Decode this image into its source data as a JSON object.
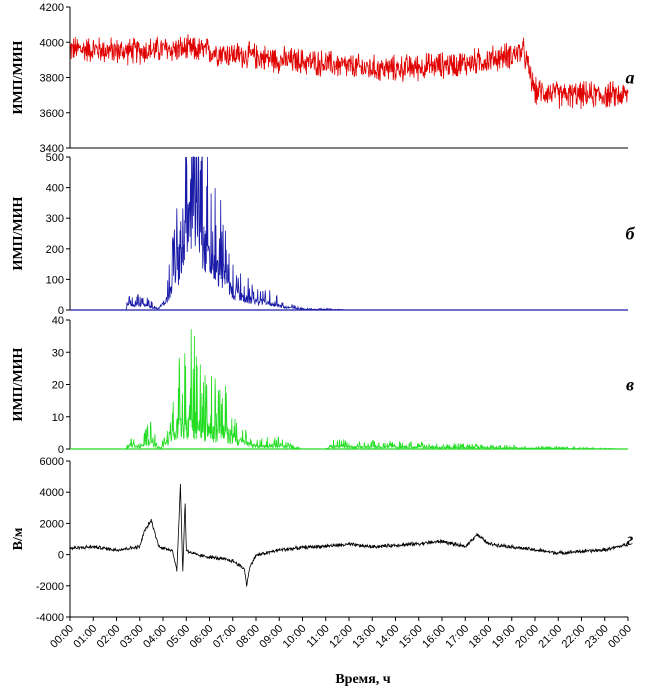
{
  "chart_data": [
    {
      "type": "line",
      "panel_label": "а",
      "ylabel": "ИМП/МИН",
      "ylim": [
        3400,
        4200
      ],
      "yticks": [
        3400,
        3600,
        3800,
        4000,
        4200
      ],
      "color": "#e00000",
      "series": [
        {
          "x": [
            0,
            1,
            2,
            3,
            4,
            5,
            6,
            7,
            8,
            9,
            10,
            11,
            12,
            13,
            14,
            15,
            16,
            17,
            18,
            19,
            19.5,
            20,
            20.5,
            21,
            22,
            23,
            24
          ],
          "values": [
            3960,
            3960,
            3950,
            3950,
            3960,
            3960,
            3950,
            3930,
            3920,
            3900,
            3890,
            3880,
            3860,
            3850,
            3850,
            3860,
            3870,
            3880,
            3900,
            3930,
            3950,
            3720,
            3720,
            3700,
            3700,
            3700,
            3700
          ]
        }
      ],
      "noise": 90
    },
    {
      "type": "line",
      "panel_label": "б",
      "ylabel": "ИМП/МИН",
      "ylim": [
        0,
        500
      ],
      "yticks": [
        0,
        100,
        200,
        300,
        400,
        500
      ],
      "color": "#1a1aa8",
      "series": [
        {
          "x": [
            0,
            2.4,
            2.5,
            3,
            3.8,
            4.2,
            4.5,
            4.8,
            5.0,
            5.2,
            5.5,
            5.8,
            6.0,
            6.3,
            6.6,
            7.0,
            7.5,
            8.0,
            8.5,
            9.0,
            9.3,
            10,
            11,
            12,
            24
          ],
          "values": [
            0,
            0,
            20,
            20,
            5,
            40,
            100,
            170,
            280,
            350,
            300,
            220,
            170,
            140,
            120,
            60,
            40,
            30,
            25,
            15,
            10,
            2,
            2,
            0,
            0
          ]
        }
      ],
      "noise": 0.45
    },
    {
      "type": "line",
      "panel_label": "в",
      "ylabel": "ИМП/МИН",
      "ylim": [
        0,
        40
      ],
      "yticks": [
        0,
        10,
        20,
        30,
        40
      ],
      "color": "#22dd22",
      "series": [
        {
          "x": [
            0,
            2.4,
            2.6,
            3.0,
            3.4,
            3.8,
            4.0,
            4.3,
            4.6,
            4.9,
            5.2,
            5.5,
            5.8,
            6.1,
            6.5,
            7.0,
            7.5,
            8.0,
            8.5,
            9.0,
            9.4,
            10,
            11,
            11.2,
            24
          ],
          "values": [
            0,
            0,
            1.5,
            0.5,
            2.5,
            0.5,
            1,
            4,
            7,
            9,
            10,
            9,
            7,
            6,
            6,
            4,
            2,
            1,
            1,
            1,
            0.5,
            0,
            0,
            0.8,
            0
          ]
        }
      ],
      "noise": 0.7
    },
    {
      "type": "line",
      "panel_label": "г",
      "ylabel": "В/м",
      "ylim": [
        -4000,
        6000
      ],
      "yticks": [
        -4000,
        -2000,
        0,
        2000,
        4000,
        6000
      ],
      "color": "#000000",
      "series": [
        {
          "x": [
            0,
            1,
            2,
            3,
            3.2,
            3.5,
            3.8,
            4.0,
            4.4,
            4.6,
            4.75,
            4.85,
            4.95,
            5.0,
            5.1,
            5.5,
            6,
            7,
            7.5,
            7.6,
            7.7,
            7.8,
            8,
            9,
            10,
            11,
            12,
            13,
            14,
            15,
            16,
            17,
            17.5,
            18,
            19,
            20,
            21,
            22,
            23,
            24
          ],
          "values": [
            400,
            500,
            300,
            500,
            1500,
            2200,
            600,
            400,
            300,
            -1000,
            4500,
            -1200,
            3500,
            300,
            200,
            -50,
            -150,
            -400,
            -900,
            -2000,
            -1000,
            -600,
            -50,
            300,
            450,
            550,
            650,
            500,
            600,
            700,
            850,
            500,
            1300,
            700,
            500,
            300,
            100,
            200,
            300,
            650
          ]
        }
      ],
      "noise": 140
    }
  ],
  "x_tick_labels": [
    "00:00",
    "01:00",
    "02:00",
    "03:00",
    "04:00",
    "05:00",
    "06:00",
    "07:00",
    "08:00",
    "09:00",
    "10:00",
    "11:00",
    "12:00",
    "13:00",
    "14:00",
    "15:00",
    "16:00",
    "17:00",
    "18:00",
    "19:00",
    "20:00",
    "21:00",
    "22:00",
    "23:00",
    "00:00"
  ],
  "xlabel": "Время, ч"
}
